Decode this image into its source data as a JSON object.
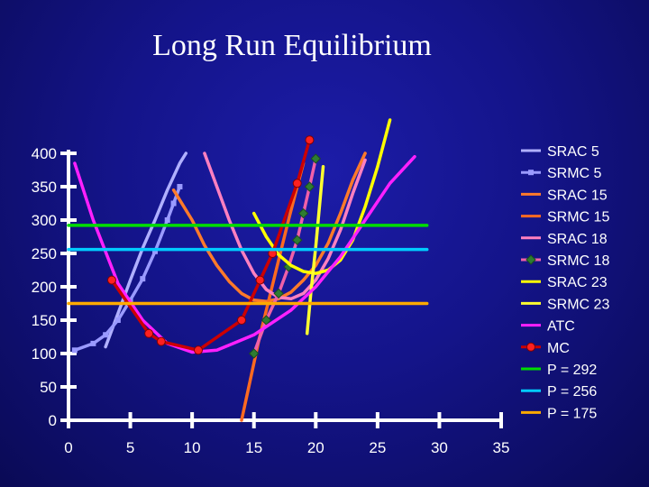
{
  "chart_data": {
    "type": "line",
    "title": "Long Run Equilibrium",
    "xlim": [
      0,
      35
    ],
    "ylim": [
      0,
      400
    ],
    "x_ticks": [
      0,
      5,
      10,
      15,
      20,
      25,
      30,
      35
    ],
    "y_ticks": [
      0,
      50,
      100,
      150,
      200,
      250,
      300,
      350,
      400
    ],
    "legend_position": "right",
    "series": [
      {
        "name": "SRAC 5",
        "color": "#b0b0ff",
        "marker": "none",
        "points": [
          [
            3,
            110
          ],
          [
            4,
            160
          ],
          [
            5,
            210
          ],
          [
            6,
            258
          ],
          [
            7,
            300
          ],
          [
            8,
            345
          ],
          [
            9,
            385
          ],
          [
            9.5,
            400
          ]
        ]
      },
      {
        "name": "SRMC 5",
        "color": "#9a9aff",
        "marker": "square",
        "points": [
          [
            0.5,
            105
          ],
          [
            2,
            115
          ],
          [
            3,
            128
          ],
          [
            4,
            150
          ],
          [
            5,
            180
          ],
          [
            6,
            212
          ],
          [
            7,
            253
          ],
          [
            8,
            300
          ],
          [
            8.5,
            325
          ],
          [
            9,
            350
          ]
        ]
      },
      {
        "name": "SRAC 15",
        "color": "#ff7a2a",
        "marker": "none",
        "points": [
          [
            8.5,
            345
          ],
          [
            10,
            300
          ],
          [
            11,
            262
          ],
          [
            12,
            232
          ],
          [
            13,
            208
          ],
          [
            14,
            190
          ],
          [
            15,
            180
          ],
          [
            16,
            178
          ],
          [
            17,
            182
          ],
          [
            18,
            192
          ],
          [
            19,
            210
          ],
          [
            20,
            232
          ],
          [
            21,
            265
          ],
          [
            22,
            310
          ],
          [
            23,
            360
          ],
          [
            24,
            400
          ]
        ]
      },
      {
        "name": "SRMC 15",
        "color": "#ff6a20",
        "marker": "none",
        "points": [
          [
            14,
            0
          ],
          [
            14.7,
            60
          ],
          [
            15.4,
            120
          ],
          [
            16.2,
            180
          ],
          [
            17,
            240
          ],
          [
            17.8,
            300
          ],
          [
            18.5,
            350
          ],
          [
            19,
            385
          ]
        ]
      },
      {
        "name": "SRAC 18",
        "color": "#ff80c0",
        "marker": "none",
        "points": [
          [
            11,
            400
          ],
          [
            12,
            350
          ],
          [
            13,
            300
          ],
          [
            14,
            255
          ],
          [
            15,
            220
          ],
          [
            16,
            196
          ],
          [
            17,
            184
          ],
          [
            18,
            182
          ],
          [
            19,
            190
          ],
          [
            20,
            210
          ],
          [
            21,
            242
          ],
          [
            22,
            285
          ],
          [
            23,
            340
          ],
          [
            24,
            390
          ]
        ]
      },
      {
        "name": "SRMC 18",
        "color": "#f060a8",
        "marker": "diamond",
        "points": [
          [
            15,
            100
          ],
          [
            16,
            150
          ],
          [
            17,
            190
          ],
          [
            17.8,
            230
          ],
          [
            18.5,
            270
          ],
          [
            19,
            310
          ],
          [
            19.5,
            350
          ],
          [
            20,
            392
          ]
        ]
      },
      {
        "name": "SRAC 23",
        "color": "#ffff00",
        "marker": "none",
        "points": [
          [
            15,
            310
          ],
          [
            16,
            275
          ],
          [
            17,
            248
          ],
          [
            18,
            232
          ],
          [
            19,
            223
          ],
          [
            20,
            220
          ],
          [
            21,
            225
          ],
          [
            22,
            240
          ],
          [
            23,
            270
          ],
          [
            24,
            320
          ],
          [
            25,
            380
          ],
          [
            26,
            450
          ]
        ]
      },
      {
        "name": "SRMC 23",
        "color": "#ffff30",
        "marker": "none",
        "points": [
          [
            19.3,
            130
          ],
          [
            19.6,
            190
          ],
          [
            20,
            260
          ],
          [
            20.3,
            320
          ],
          [
            20.6,
            380
          ]
        ]
      },
      {
        "name": "ATC",
        "color": "#ff20ff",
        "marker": "none",
        "points": [
          [
            0.5,
            385
          ],
          [
            2,
            300
          ],
          [
            4,
            205
          ],
          [
            6,
            150
          ],
          [
            8,
            115
          ],
          [
            10,
            102
          ],
          [
            12,
            105
          ],
          [
            15,
            128
          ],
          [
            18,
            165
          ],
          [
            20,
            200
          ],
          [
            22,
            245
          ],
          [
            24,
            300
          ],
          [
            26,
            355
          ],
          [
            28,
            395
          ]
        ]
      },
      {
        "name": "MC",
        "color": "#cc0000",
        "marker": "circle",
        "points": [
          [
            3.5,
            210
          ],
          [
            6.5,
            130
          ],
          [
            7.5,
            118
          ],
          [
            10.5,
            105
          ],
          [
            14,
            150
          ],
          [
            15.5,
            210
          ],
          [
            16.5,
            250
          ],
          [
            18.5,
            355
          ],
          [
            19.5,
            420
          ]
        ]
      },
      {
        "name": "P = 292",
        "color": "#00dd00",
        "marker": "none",
        "points": [
          [
            0,
            292
          ],
          [
            29,
            292
          ]
        ]
      },
      {
        "name": "P = 256",
        "color": "#00ccff",
        "marker": "none",
        "points": [
          [
            0,
            256
          ],
          [
            29,
            256
          ]
        ]
      },
      {
        "name": "P = 175",
        "color": "#ffaa00",
        "marker": "none",
        "points": [
          [
            0,
            175
          ],
          [
            29,
            175
          ]
        ]
      }
    ]
  }
}
